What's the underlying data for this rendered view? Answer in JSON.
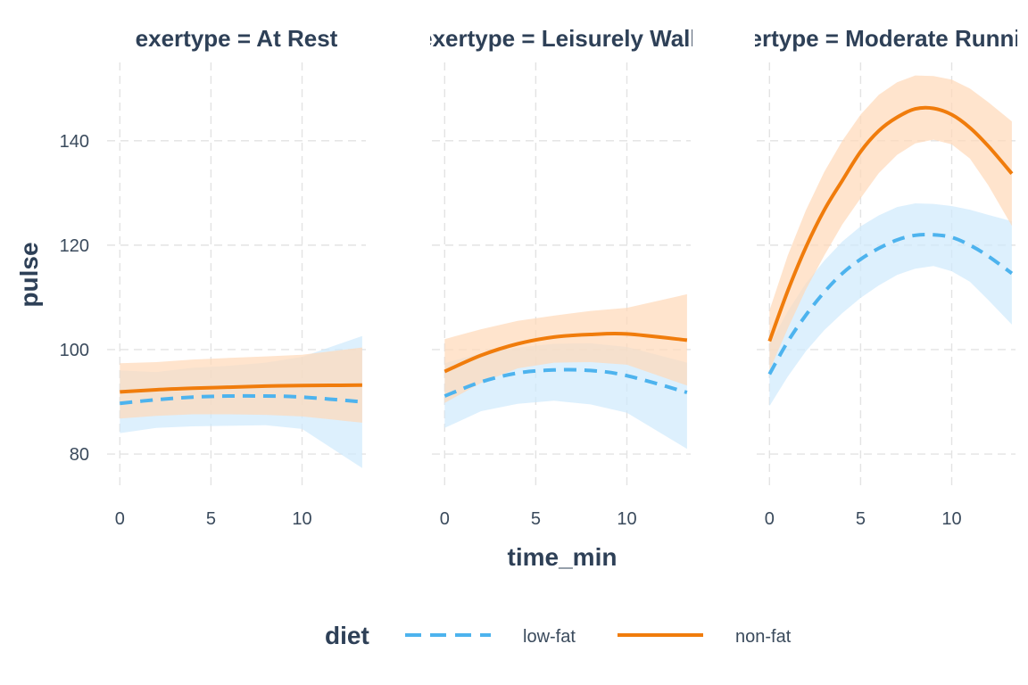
{
  "chart_data": {
    "type": "line",
    "facet_var": "exertype",
    "facets": [
      {
        "title": "exertype = At Rest",
        "series": [
          {
            "name": "low-fat",
            "x": [
              0,
              2,
              4,
              6,
              8,
              10,
              13.3
            ],
            "y": [
              89.7,
              90.4,
              90.9,
              91.1,
              91.1,
              90.9,
              90.0
            ],
            "lower": [
              84.0,
              85.0,
              85.3,
              85.4,
              85.5,
              84.8,
              77.3
            ],
            "upper": [
              96.0,
              95.7,
              96.5,
              96.9,
              97.5,
              98.6,
              102.6
            ]
          },
          {
            "name": "non-fat",
            "x": [
              0,
              2,
              4,
              6,
              8,
              10,
              13.3
            ],
            "y": [
              91.9,
              92.3,
              92.6,
              92.8,
              93.0,
              93.1,
              93.2
            ],
            "lower": [
              86.8,
              87.3,
              87.6,
              87.6,
              87.5,
              87.2,
              86.0
            ],
            "upper": [
              97.4,
              97.6,
              98.1,
              98.4,
              98.7,
              99.0,
              100.4
            ]
          }
        ]
      },
      {
        "title": "exertype = Leisurely Walk",
        "series": [
          {
            "name": "low-fat",
            "x": [
              0,
              2,
              4,
              6,
              8,
              10,
              13.3
            ],
            "y": [
              91.1,
              93.8,
              95.5,
              96.1,
              96.0,
              95.0,
              91.8
            ],
            "lower": [
              85.0,
              88.2,
              89.6,
              90.2,
              89.5,
              87.9,
              81.0
            ],
            "upper": [
              97.4,
              99.3,
              100.4,
              101.1,
              101.2,
              100.5,
              97.5
            ]
          },
          {
            "name": "non-fat",
            "x": [
              0,
              2,
              4,
              6,
              8,
              10,
              13.3
            ],
            "y": [
              95.8,
              98.9,
              101.1,
              102.4,
              102.9,
              103.0,
              101.8
            ],
            "lower": [
              89.8,
              93.6,
              96.4,
              97.5,
              97.6,
              97.1,
              93.1
            ],
            "upper": [
              102.0,
              103.9,
              105.5,
              106.5,
              107.4,
              108.0,
              110.6
            ]
          }
        ]
      },
      {
        "title": "exertype = Moderate Running",
        "series": [
          {
            "name": "low-fat",
            "x": [
              0,
              1,
              2,
              3,
              4,
              5,
              6,
              7,
              8,
              9,
              10,
              11,
              12,
              13.3
            ],
            "y": [
              95.3,
              101.5,
              106.6,
              111.0,
              114.6,
              117.3,
              119.4,
              121.0,
              121.9,
              122.0,
              121.5,
              120.0,
              117.9,
              114.6
            ],
            "lower": [
              89.2,
              94.8,
              99.7,
              103.7,
              107.0,
              109.9,
              112.3,
              114.3,
              115.5,
              116.0,
              115.0,
              113.0,
              109.5,
              104.8
            ],
            "upper": [
              101.0,
              107.3,
              112.7,
              117.0,
              120.7,
              123.6,
              125.7,
              127.3,
              128.0,
              127.9,
              127.5,
              126.8,
              125.8,
              124.6
            ]
          },
          {
            "name": "non-fat",
            "x": [
              0,
              1,
              2,
              3,
              4,
              5,
              6,
              7,
              8,
              9,
              10,
              11,
              12,
              13.3
            ],
            "y": [
              101.6,
              111.2,
              119.6,
              126.7,
              132.4,
              137.9,
              141.9,
              144.5,
              146.1,
              146.2,
              145.0,
              142.5,
              139.0,
              133.7
            ],
            "lower": [
              96.0,
              104.0,
              111.5,
              118.0,
              124.0,
              129.0,
              133.8,
              137.3,
              139.5,
              140.2,
              139.3,
              136.6,
              131.5,
              123.7
            ],
            "upper": [
              107.5,
              118.0,
              126.7,
              134.0,
              140.0,
              145.0,
              148.8,
              151.2,
              152.5,
              152.4,
              151.7,
              150.0,
              147.4,
              143.7
            ]
          }
        ]
      }
    ],
    "xlabel": "time_min",
    "ylabel": "pulse",
    "xlim": [
      -0.7,
      13.5
    ],
    "ylim": [
      73,
      155
    ],
    "xticks": [
      0,
      5,
      10
    ],
    "yticks": [
      80,
      100,
      120,
      140
    ],
    "grid": true,
    "legend": {
      "title": "diet",
      "placement": "bottom",
      "entries": [
        {
          "label": "low-fat",
          "color": "#4db3ee",
          "dash": "dashed"
        },
        {
          "label": "non-fat",
          "color": "#f07c0c",
          "dash": "solid"
        }
      ]
    },
    "colors": {
      "low-fat": "#4db3ee",
      "non-fat": "#f07c0c",
      "low-fat-band": "#cfeafc",
      "non-fat-band": "#ffd8b8",
      "grid": "#e3e3e3"
    }
  }
}
